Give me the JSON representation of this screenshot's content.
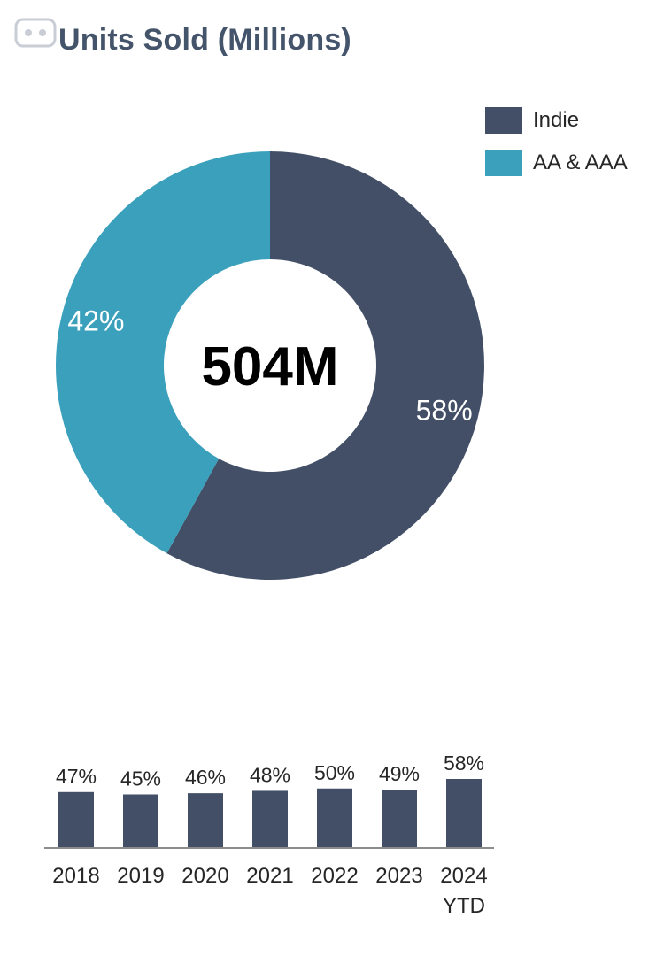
{
  "header": {
    "title": "Units Sold (Millions)"
  },
  "colors": {
    "indie": "#424f66",
    "aa_aaa": "#3aa0bc"
  },
  "chart_data": [
    {
      "type": "pie",
      "variant": "donut",
      "title": "Units Sold (Millions)",
      "center_label": "504M",
      "legend_position": "top-right",
      "slices": [
        {
          "name": "Indie",
          "value": 58,
          "label": "58%",
          "color": "#424f66"
        },
        {
          "name": "AA & AAA",
          "value": 42,
          "label": "42%",
          "color": "#3aa0bc"
        }
      ]
    },
    {
      "type": "bar",
      "categories": [
        "2018",
        "2019",
        "2020",
        "2021",
        "2022",
        "2023",
        "2024 YTD"
      ],
      "category_lines": [
        [
          "2018"
        ],
        [
          "2019"
        ],
        [
          "2020"
        ],
        [
          "2021"
        ],
        [
          "2022"
        ],
        [
          "2023"
        ],
        [
          "2024",
          "YTD"
        ]
      ],
      "values": [
        47,
        45,
        46,
        48,
        50,
        49,
        58
      ],
      "value_labels": [
        "47%",
        "45%",
        "46%",
        "48%",
        "50%",
        "49%",
        "58%"
      ],
      "color": "#424f66"
    }
  ]
}
